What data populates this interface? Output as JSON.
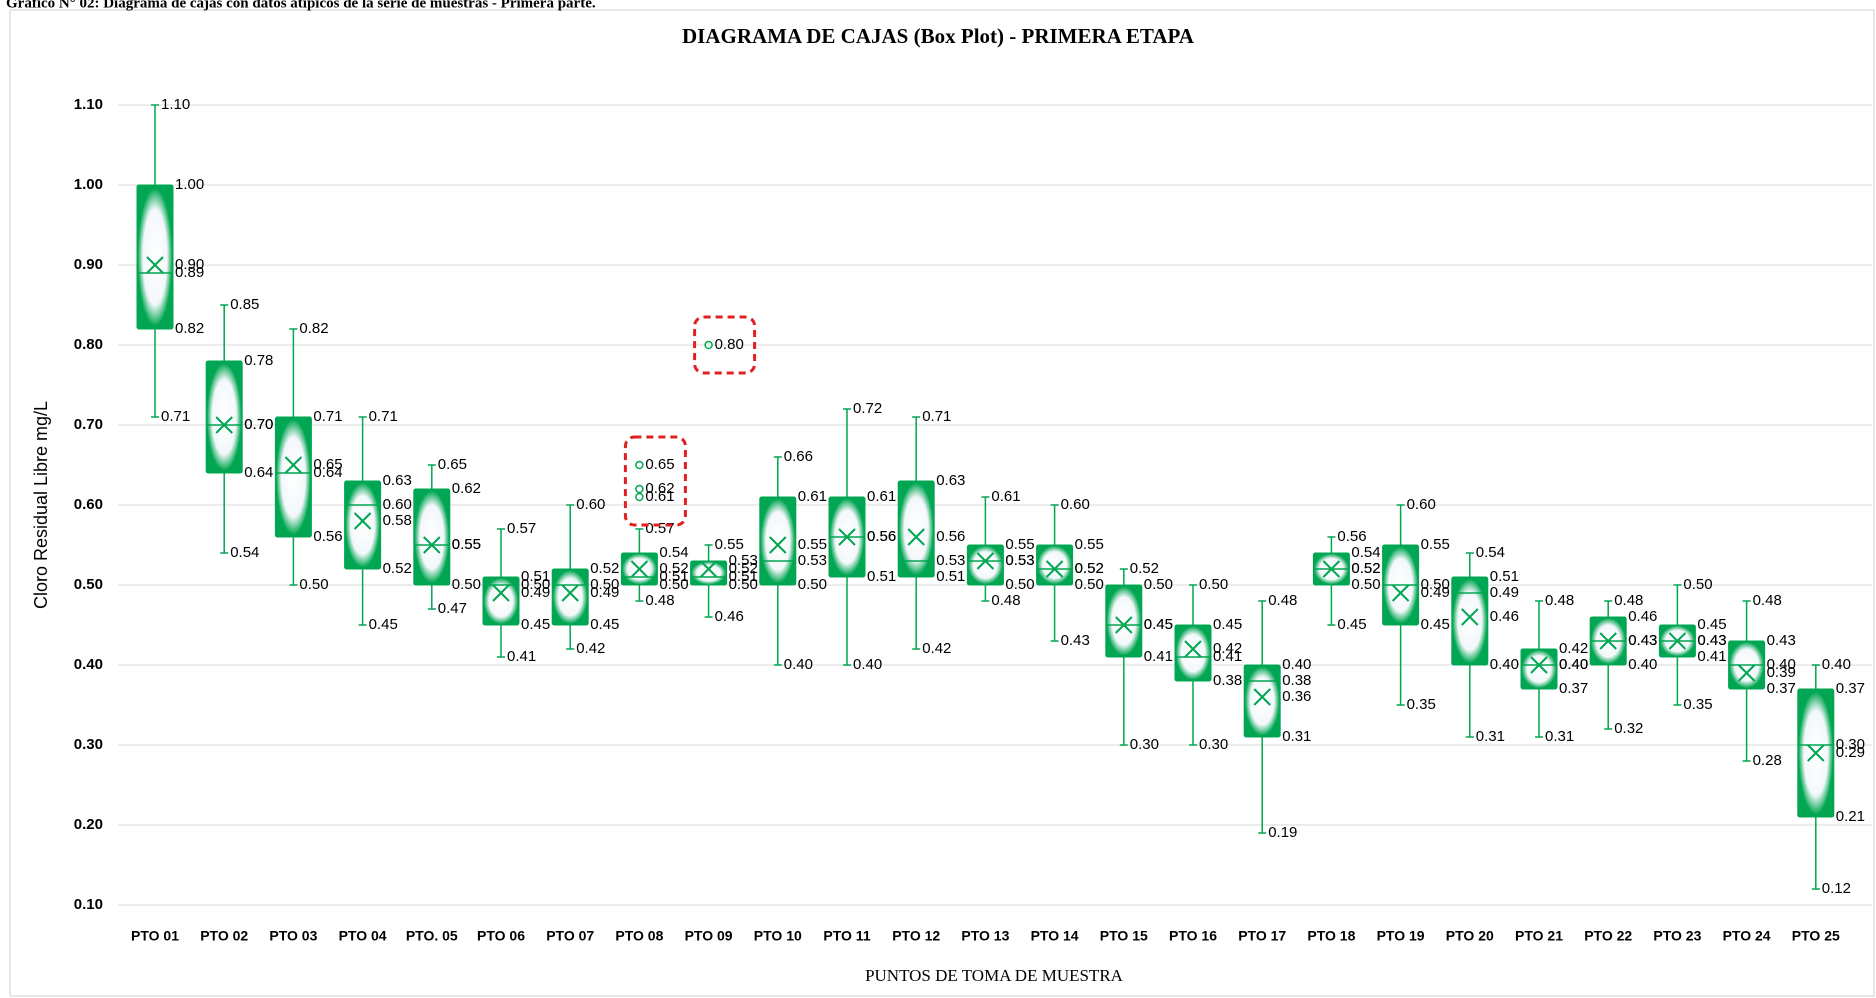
{
  "caption": "Gráfico N° 02: Diagrama de cajas con datos atípicos de la serie de muestras - Primera parte.",
  "chart_data": {
    "type": "box",
    "title": "DIAGRAMA DE CAJAS (Box Plot) - PRIMERA ETAPA",
    "xlabel": "PUNTOS DE TOMA DE MUESTRA",
    "ylabel": "Cloro Residual Libre mg/L",
    "color": "#00a651",
    "grid": true,
    "ylim": [
      0.1,
      1.1
    ],
    "yticks": [
      {
        "value": 0.1,
        "label": "0.10"
      },
      {
        "value": 0.2,
        "label": "0.20"
      },
      {
        "value": 0.3,
        "label": "0.30"
      },
      {
        "value": 0.4,
        "label": "0.40"
      },
      {
        "value": 0.5,
        "label": "0.50"
      },
      {
        "value": 0.6,
        "label": "0.60"
      },
      {
        "value": 0.7,
        "label": "0.70"
      },
      {
        "value": 0.8,
        "label": "0.80"
      },
      {
        "value": 0.9,
        "label": "0.90"
      },
      {
        "value": 1.0,
        "label": "1.00"
      },
      {
        "value": 1.1,
        "label": "1.10"
      }
    ],
    "categories": [
      "PTO 01",
      "PTO 02",
      "PTO 03",
      "PTO 04",
      "PTO. 05",
      "PTO 06",
      "PTO 07",
      "PTO 08",
      "PTO 09",
      "PTO 10",
      "PTO 11",
      "PTO 12",
      "PTO 13",
      "PTO 14",
      "PTO 15",
      "PTO 16",
      "PTO 17",
      "PTO 18",
      "PTO 19",
      "PTO 20",
      "PTO 21",
      "PTO 22",
      "PTO 23",
      "PTO 24",
      "PTO 25"
    ],
    "value_order": [
      "min",
      "q1",
      "median",
      "q3",
      "max",
      "mean"
    ],
    "boxes": [
      {
        "values": [
          0.71,
          0.82,
          0.89,
          1.0,
          1.1,
          0.9
        ],
        "value_labels": [
          "0.71",
          "0.82",
          "0.89",
          "1.00",
          "1.10",
          "0.90"
        ]
      },
      {
        "values": [
          0.54,
          0.64,
          0.7,
          0.78,
          0.85,
          0.7
        ],
        "value_labels": [
          "0.54",
          "0.64",
          "0.70",
          "0.78",
          "0.85",
          "0.70"
        ]
      },
      {
        "values": [
          0.5,
          0.56,
          0.64,
          0.71,
          0.82,
          0.65
        ],
        "value_labels": [
          "0.50",
          "0.56",
          "0.64",
          "0.71",
          "0.82",
          "0.65"
        ]
      },
      {
        "values": [
          0.45,
          0.52,
          0.6,
          0.63,
          0.71,
          0.58
        ],
        "value_labels": [
          "0.45",
          "0.52",
          "0.60",
          "0.63",
          "0.71",
          "0.58"
        ]
      },
      {
        "values": [
          0.47,
          0.5,
          0.55,
          0.62,
          0.65,
          0.55
        ],
        "value_labels": [
          "0.47",
          "0.50",
          "0.55",
          "0.62",
          "0.65",
          "0.55"
        ]
      },
      {
        "values": [
          0.41,
          0.45,
          0.5,
          0.51,
          0.57,
          0.49
        ],
        "value_labels": [
          "0.41",
          "0.45",
          "0.50",
          "0.51",
          "0.57",
          "0.49"
        ]
      },
      {
        "values": [
          0.42,
          0.45,
          0.5,
          0.52,
          0.6,
          0.49
        ],
        "value_labels": [
          "0.42",
          "0.45",
          "0.50",
          "0.52",
          "0.60",
          "0.49"
        ]
      },
      {
        "values": [
          0.48,
          0.5,
          0.51,
          0.54,
          0.57,
          0.52
        ],
        "value_labels": [
          "0.48",
          "0.50",
          "0.51",
          "0.54",
          "0.57",
          "0.52"
        ],
        "outliers": [
          0.65,
          0.62,
          0.61
        ],
        "outlier_labels": [
          "0.65",
          "0.62",
          "0.61"
        ]
      },
      {
        "values": [
          0.46,
          0.5,
          0.51,
          0.53,
          0.55,
          0.52
        ],
        "value_labels": [
          "0.46",
          "0.50",
          "0.51",
          "0.53",
          "0.55",
          "0.52"
        ],
        "outliers": [
          0.8
        ],
        "outlier_labels": [
          "0.80"
        ]
      },
      {
        "values": [
          0.4,
          0.5,
          0.53,
          0.61,
          0.66,
          0.55
        ],
        "value_labels": [
          "0.40",
          "0.50",
          "0.53",
          "0.61",
          "0.66",
          "0.55"
        ]
      },
      {
        "values": [
          0.4,
          0.51,
          0.56,
          0.61,
          0.72,
          0.56
        ],
        "value_labels": [
          "0.40",
          "0.51",
          "0.56",
          "0.61",
          "0.72",
          "0.56"
        ]
      },
      {
        "values": [
          0.42,
          0.51,
          0.53,
          0.63,
          0.71,
          0.56
        ],
        "value_labels": [
          "0.42",
          "0.51",
          "0.53",
          "0.63",
          "0.71",
          "0.56"
        ]
      },
      {
        "values": [
          0.48,
          0.5,
          0.53,
          0.55,
          0.61,
          0.53
        ],
        "value_labels": [
          "0.48",
          "0.50",
          "0.53",
          "0.55",
          "0.61",
          "0.53"
        ]
      },
      {
        "values": [
          0.43,
          0.5,
          0.52,
          0.55,
          0.6,
          0.52
        ],
        "value_labels": [
          "0.43",
          "0.50",
          "0.52",
          "0.55",
          "0.60",
          "0.52"
        ]
      },
      {
        "values": [
          0.3,
          0.41,
          0.45,
          0.5,
          0.52,
          0.45
        ],
        "value_labels": [
          "0.30",
          "0.41",
          "0.45",
          "0.50",
          "0.52",
          "0.45"
        ]
      },
      {
        "values": [
          0.3,
          0.38,
          0.41,
          0.45,
          0.5,
          0.42
        ],
        "value_labels": [
          "0.30",
          "0.38",
          "0.41",
          "0.45",
          "0.50",
          "0.42"
        ]
      },
      {
        "values": [
          0.19,
          0.31,
          0.38,
          0.4,
          0.48,
          0.36
        ],
        "value_labels": [
          "0.19",
          "0.31",
          "0.38",
          "0.40",
          "0.48",
          "0.36"
        ]
      },
      {
        "values": [
          0.45,
          0.5,
          0.52,
          0.54,
          0.56,
          0.52
        ],
        "value_labels": [
          "0.45",
          "0.50",
          "0.52",
          "0.54",
          "0.56",
          "0.52"
        ]
      },
      {
        "values": [
          0.35,
          0.45,
          0.5,
          0.55,
          0.6,
          0.49
        ],
        "value_labels": [
          "0.35",
          "0.45",
          "0.50",
          "0.55",
          "0.60",
          "0.49"
        ]
      },
      {
        "values": [
          0.31,
          0.4,
          0.49,
          0.51,
          0.54,
          0.46
        ],
        "value_labels": [
          "0.31",
          "0.40",
          "0.49",
          "0.51",
          "0.54",
          "0.46"
        ]
      },
      {
        "values": [
          0.31,
          0.37,
          0.4,
          0.42,
          0.48,
          0.4
        ],
        "value_labels": [
          "0.31",
          "0.37",
          "0.40",
          "0.42",
          "0.48",
          "0.40"
        ]
      },
      {
        "values": [
          0.32,
          0.4,
          0.43,
          0.46,
          0.48,
          0.43
        ],
        "value_labels": [
          "0.32",
          "0.40",
          "0.43",
          "0.46",
          "0.48",
          "0.43"
        ]
      },
      {
        "values": [
          0.35,
          0.41,
          0.43,
          0.45,
          0.5,
          0.43
        ],
        "value_labels": [
          "0.35",
          "0.41",
          "0.43",
          "0.45",
          "0.50",
          "0.43"
        ]
      },
      {
        "values": [
          0.28,
          0.37,
          0.4,
          0.43,
          0.48,
          0.39
        ],
        "value_labels": [
          "0.28",
          "0.37",
          "0.40",
          "0.43",
          "0.48",
          "0.39"
        ]
      },
      {
        "values": [
          0.12,
          0.21,
          0.3,
          0.37,
          0.4,
          0.29
        ],
        "value_labels": [
          "0.12",
          "0.21",
          "0.30",
          "0.37",
          "0.40",
          "0.29"
        ]
      }
    ]
  }
}
